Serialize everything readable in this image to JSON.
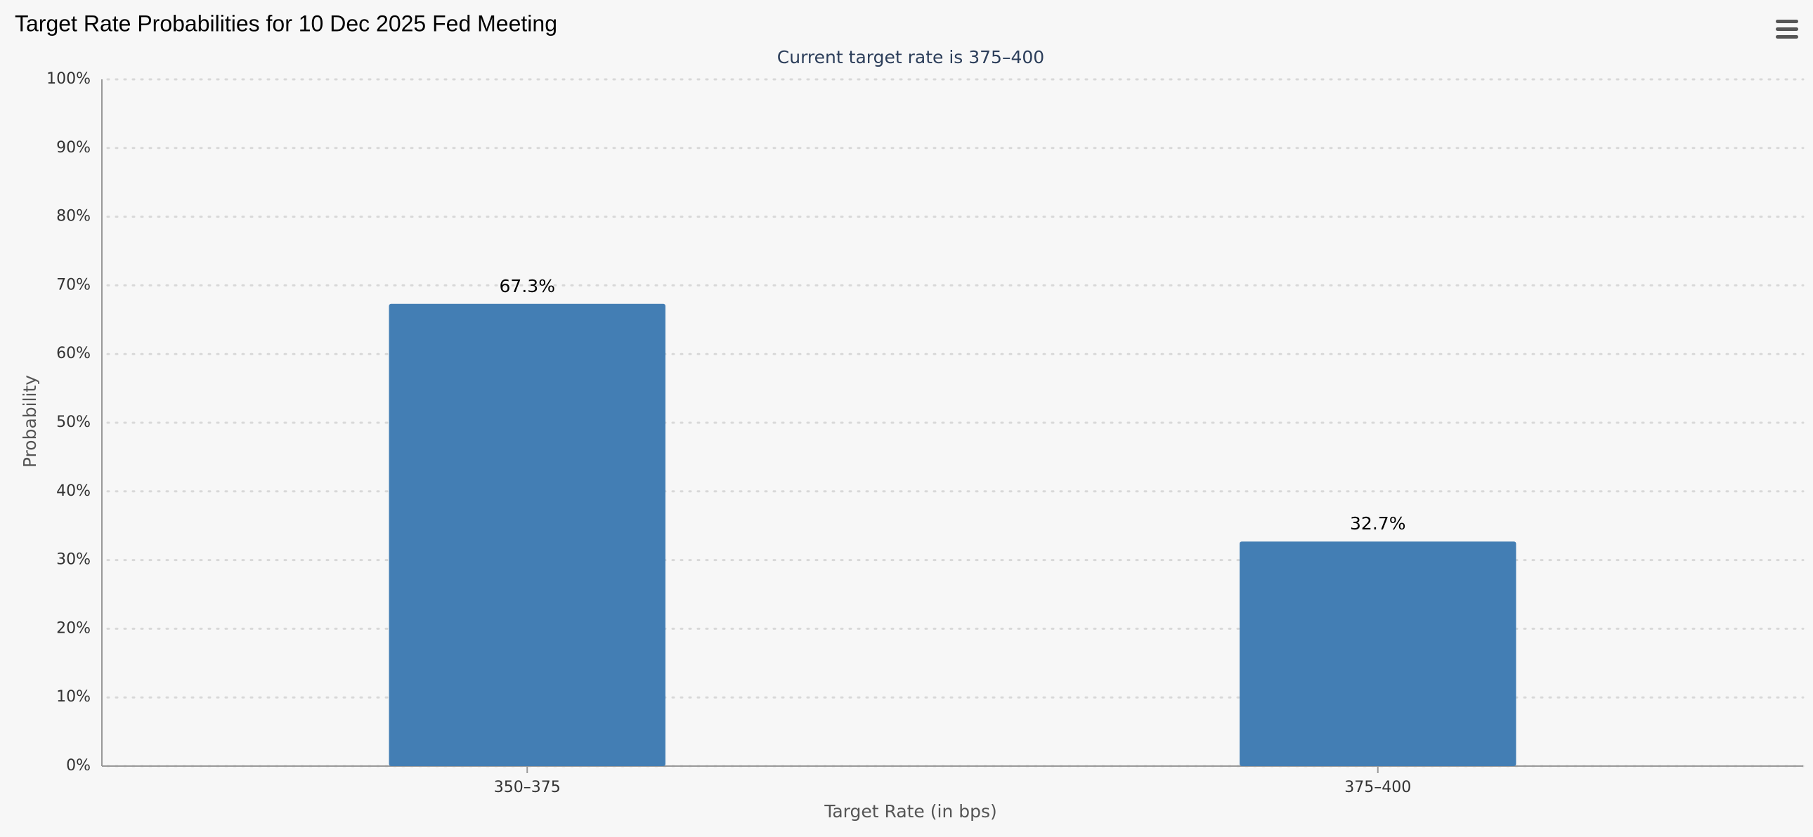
{
  "chart_data": {
    "type": "bar",
    "title": "Target Rate Probabilities for 10 Dec 2025 Fed Meeting",
    "subtitle": "Current target rate is 375–400",
    "x_label": "Target Rate (in bps)",
    "y_label": "Probability",
    "categories": [
      "350–375",
      "375–400"
    ],
    "values": [
      67.3,
      32.7
    ],
    "value_labels": [
      "67.3%",
      "32.7%"
    ],
    "color": "#437eb4",
    "ylim": [
      0,
      100
    ],
    "yticks": [
      {
        "value": 0,
        "label": "0%"
      },
      {
        "value": 10,
        "label": "10%"
      },
      {
        "value": 20,
        "label": "20%"
      },
      {
        "value": 30,
        "label": "30%"
      },
      {
        "value": 40,
        "label": "40%"
      },
      {
        "value": 50,
        "label": "50%"
      },
      {
        "value": 60,
        "label": "60%"
      },
      {
        "value": 70,
        "label": "70%"
      },
      {
        "value": 80,
        "label": "80%"
      },
      {
        "value": 90,
        "label": "90%"
      },
      {
        "value": 100,
        "label": "100%"
      }
    ],
    "grid": true
  }
}
